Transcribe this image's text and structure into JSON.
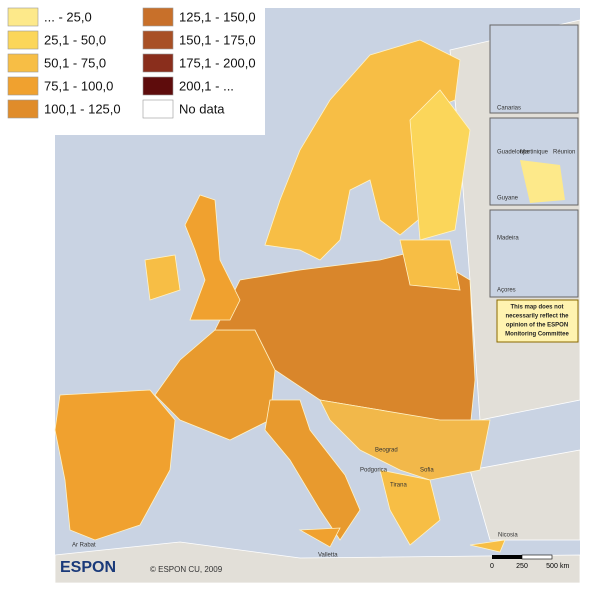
{
  "legend": [
    {
      "label": "... - 25,0",
      "color": "#fde98a"
    },
    {
      "label": "25,1 - 50,0",
      "color": "#fbd65a"
    },
    {
      "label": "50,1 - 75,0",
      "color": "#f7be45"
    },
    {
      "label": "75,1 - 100,0",
      "color": "#f0a12f"
    },
    {
      "label": "100,1 - 125,0",
      "color": "#e08c2a"
    },
    {
      "label": "125,1 - 150,0",
      "color": "#c8702a"
    },
    {
      "label": "150,1 - 175,0",
      "color": "#a85025"
    },
    {
      "label": "175,1 - 200,0",
      "color": "#8a2e1c"
    },
    {
      "label": "200,1 - ...",
      "color": "#5e0c0c"
    },
    {
      "label": "No data",
      "color": "#ffffff"
    }
  ],
  "insets": [
    "Canarias",
    "Guadeloupe",
    "Martinique",
    "Réunion",
    "Guyane",
    "Madeira",
    "Açores"
  ],
  "places": [
    "Valletta",
    "Nicosia",
    "Beograd",
    "Podgorica",
    "Tirana",
    "Sofia",
    "Ar Rabat"
  ],
  "notice": [
    "This map does not",
    "necessarily reflect the",
    "opinion of the ESPON",
    "Monitoring Committee"
  ],
  "logo": "ESPON",
  "copyright": "© ESPON CU, 2009",
  "scale": {
    "ticks": [
      "0",
      "250",
      "500"
    ],
    "unit": "km"
  }
}
